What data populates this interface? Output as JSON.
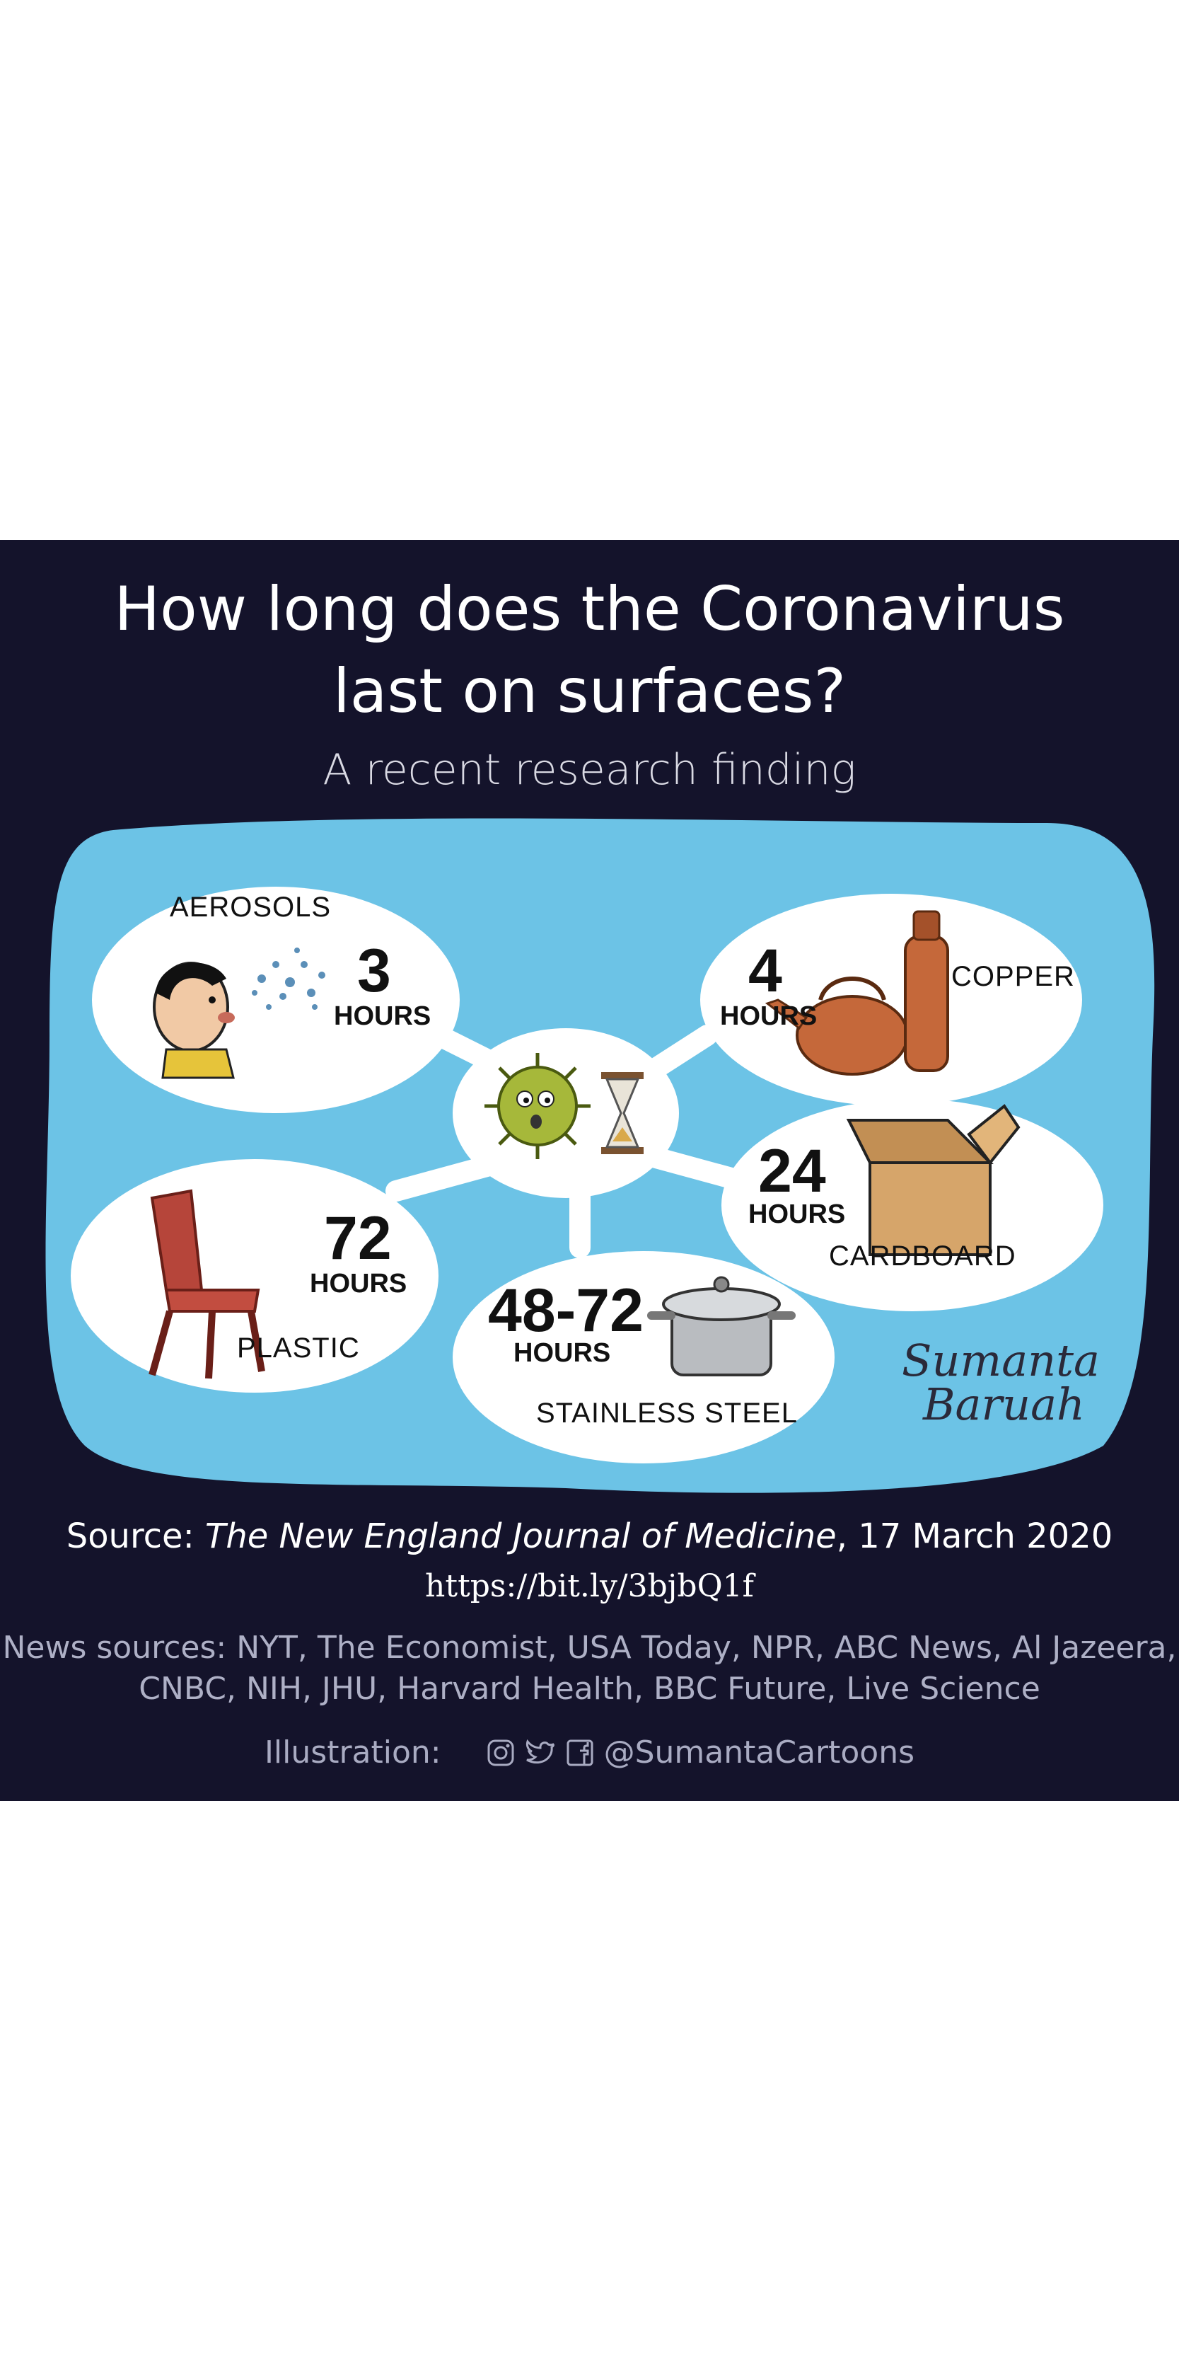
{
  "title_line1": "How long does the Coronavirus",
  "title_line2": "last on surfaces?",
  "subtitle": "A recent research finding",
  "surfaces": [
    {
      "name": "AEROSOLS",
      "duration": "3",
      "unit": "HOURS"
    },
    {
      "name": "COPPER",
      "duration": "4",
      "unit": "HOURS"
    },
    {
      "name": "CARDBOARD",
      "duration": "24",
      "unit": "HOURS"
    },
    {
      "name": "PLASTIC",
      "duration": "72",
      "unit": "HOURS"
    },
    {
      "name": "STAINLESS STEEL",
      "duration": "48-72",
      "unit": "HOURS"
    }
  ],
  "signature": {
    "line1": "Sumanta",
    "line2": "Baruah"
  },
  "source_prefix": "Source: ",
  "source_journal": "The New England Journal of Medicine",
  "source_date": ", 17 March 2020",
  "source_url": "https://bit.ly/3bjbQ1f",
  "news_line1": "News sources: NYT, The Economist, USA Today, NPR, ABC News, Al Jazeera,",
  "news_line2": "CNBC, NIH, JHU, Harvard Health, BBC Future, Live Science",
  "illustration_label": "Illustration:",
  "handle": "@SumantaCartoons",
  "colors": {
    "background": "#14132b",
    "sky": "#6cc3e6",
    "bubble": "#ffffff"
  },
  "icons": [
    "instagram-icon",
    "twitter-icon",
    "facebook-icon",
    "virus-icon",
    "hourglass-icon",
    "chair-icon",
    "kettle-icon",
    "bottle-icon",
    "box-icon",
    "pot-icon",
    "person-sneezing-icon"
  ]
}
